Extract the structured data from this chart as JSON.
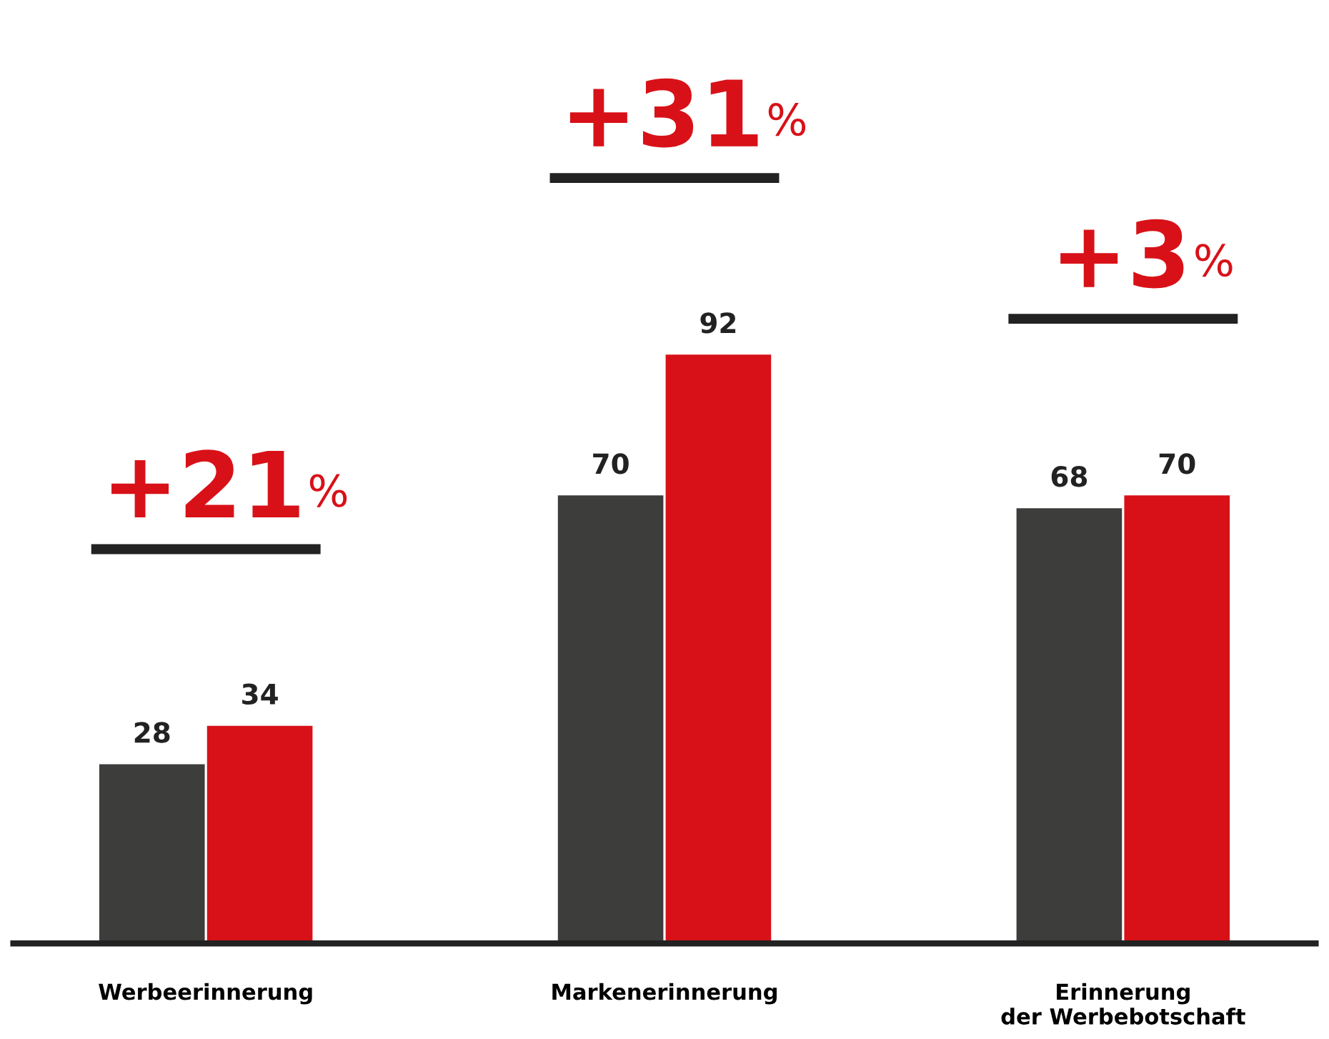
{
  "chart_data": {
    "type": "bar",
    "categories": [
      "Werbeerinnerung",
      "Markenerinnerung",
      "Erinnerung\nder Werbebotschaft"
    ],
    "series": [
      {
        "color": "#3d3d3b",
        "values": [
          28,
          70,
          68
        ]
      },
      {
        "color": "#d81118",
        "values": [
          34,
          92,
          70
        ]
      }
    ],
    "tick_labels": "x",
    "grid": false,
    "legend": false,
    "data_labels": true,
    "annotations": [
      "+21$^{%}$",
      "+31$^{%}$",
      "+3$^{%}$"
    ]
  }
}
